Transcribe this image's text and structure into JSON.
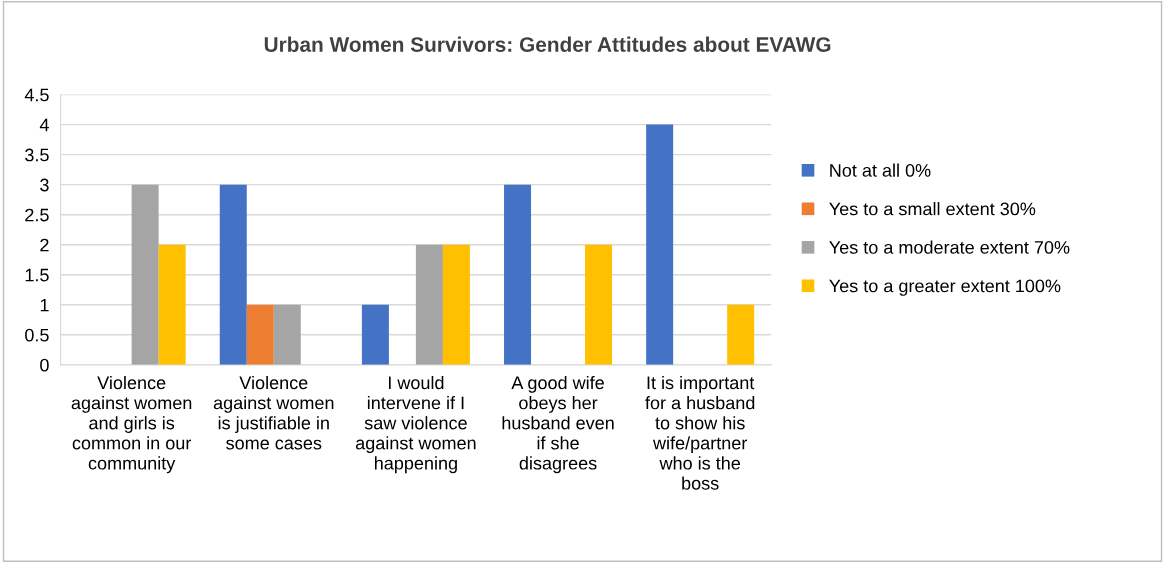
{
  "chart_data": {
    "type": "bar",
    "title": "Urban Women Survivors: Gender Attitudes about EVAWG",
    "categories": [
      "Violence\nagainst women\nand girls is\ncommon in our\ncommunity",
      "Violence\nagainst women\nis justifiable in\nsome cases",
      "I would\nintervene if I\nsaw violence\nagainst women\nhappening",
      "A good wife\nobeys her\nhusband even\nif she\ndisagrees",
      "It is important\nfor a husband\nto show his\nwife/partner\nwho is the\nboss"
    ],
    "series": [
      {
        "name": "Not at all 0%",
        "color": "#4472c4",
        "values": [
          0,
          3,
          1,
          3,
          4
        ]
      },
      {
        "name": "Yes to a small extent 30%",
        "color": "#ed7d31",
        "values": [
          0,
          1,
          0,
          0,
          0
        ]
      },
      {
        "name": "Yes to a moderate extent 70%",
        "color": "#a5a5a5",
        "values": [
          3,
          1,
          2,
          0,
          0
        ]
      },
      {
        "name": "Yes to a greater extent 100%",
        "color": "#ffc000",
        "values": [
          2,
          0,
          2,
          2,
          1
        ]
      }
    ],
    "ylim": [
      0,
      4.5
    ],
    "yticks": [
      0,
      0.5,
      1,
      1.5,
      2,
      2.5,
      3,
      3.5,
      4,
      4.5
    ],
    "grid": "y",
    "legend": "right"
  }
}
